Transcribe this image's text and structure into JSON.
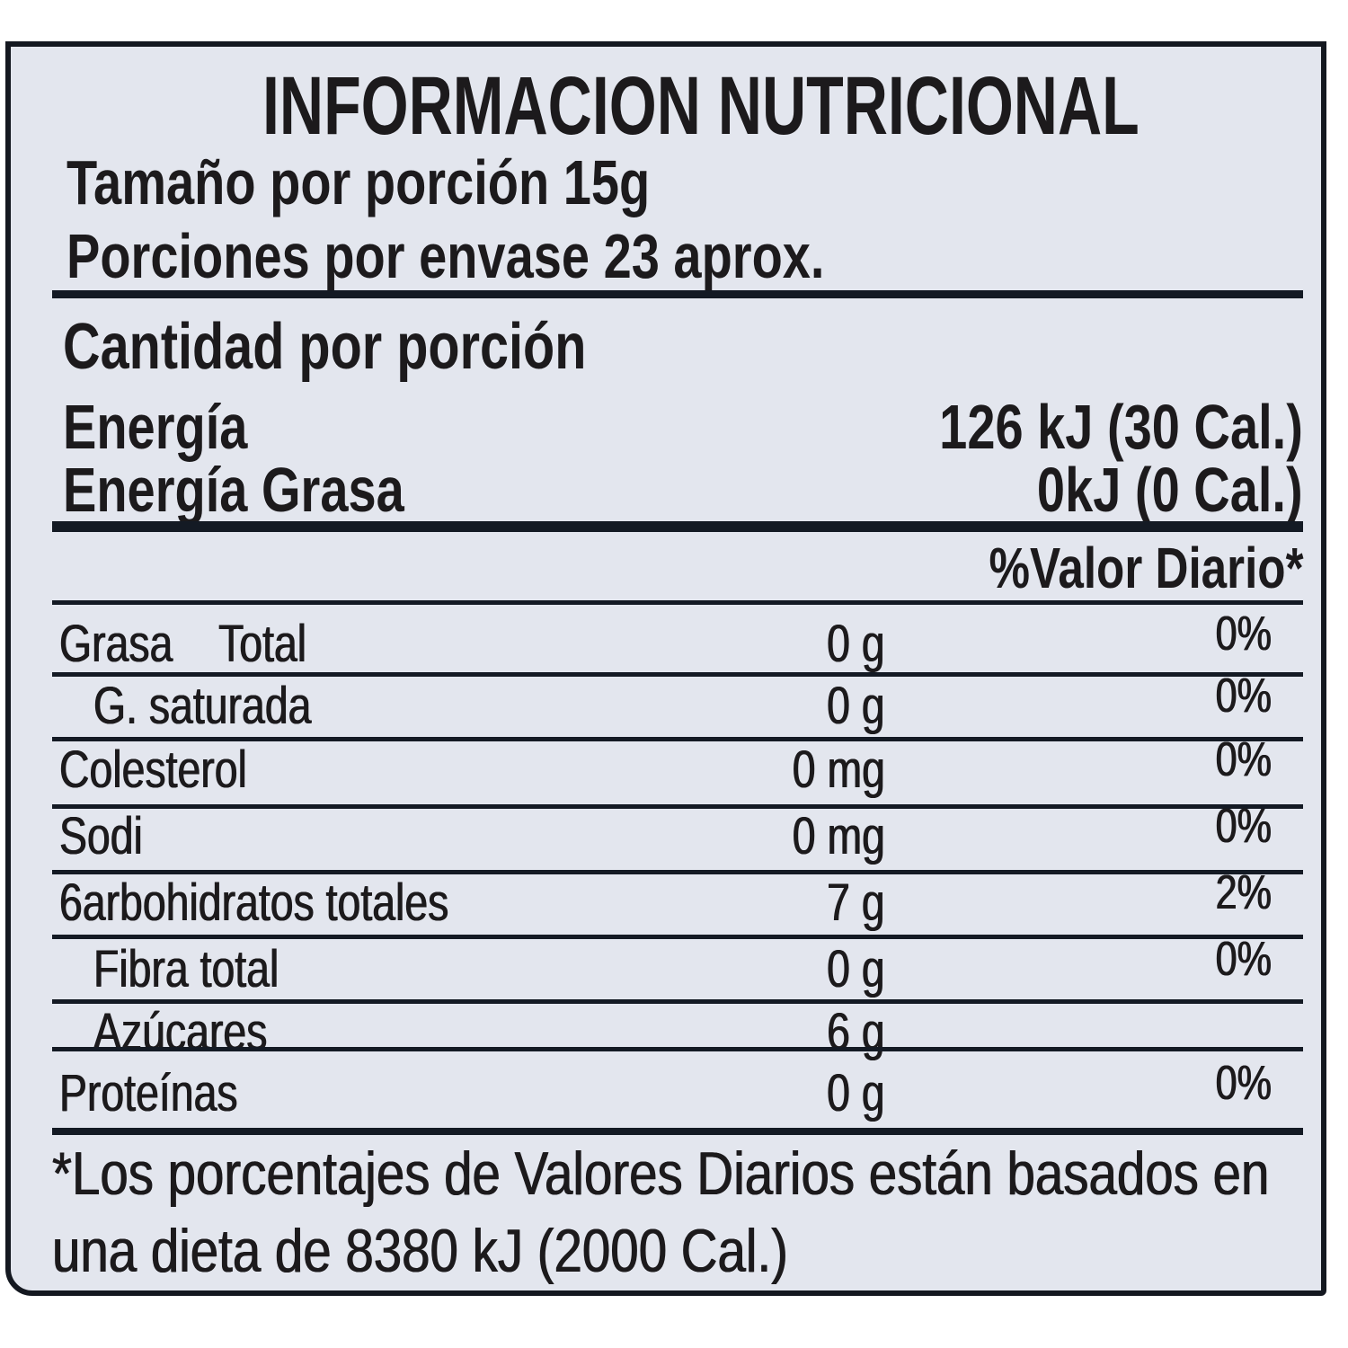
{
  "title": "INFORMACION NUTRICIONAL",
  "serving_size": "Tamaño por porción 15g",
  "servings_per_container": "Porciones por envase  23 aprox.",
  "amount_per_serving": "Cantidad por porción",
  "energy": {
    "label": "Energía",
    "value": "126 kJ (30 Cal.)"
  },
  "energy_fat": {
    "label": "Energía Grasa",
    "value": "0kJ (0 Cal.)"
  },
  "daily_value_header": "%Valor Diario*",
  "nutrients": [
    {
      "label": "Grasa    Total",
      "amount": "0 g",
      "dv": "0%"
    },
    {
      "label": "G. saturada",
      "amount": "0 g",
      "dv": "0%"
    },
    {
      "label": "Colesterol",
      "amount": "0 mg",
      "dv": "0%"
    },
    {
      "label": "Sodi",
      "amount": "0 mg",
      "dv": "0%"
    },
    {
      "label": "6arbohidratos totales",
      "amount": "7 g",
      "dv": "2%"
    },
    {
      "label": "Fibra total",
      "amount": "0 g",
      "dv": "0%"
    },
    {
      "label": "Azúcares",
      "amount": "6 g",
      "dv": ""
    },
    {
      "label": "Proteínas",
      "amount": "0 g",
      "dv": "0%"
    }
  ],
  "footnote": {
    "line1": "*Los porcentajes de Valores Diarios están basados en",
    "line2": "una dieta de 8380 kJ (2000 Cal.)"
  }
}
